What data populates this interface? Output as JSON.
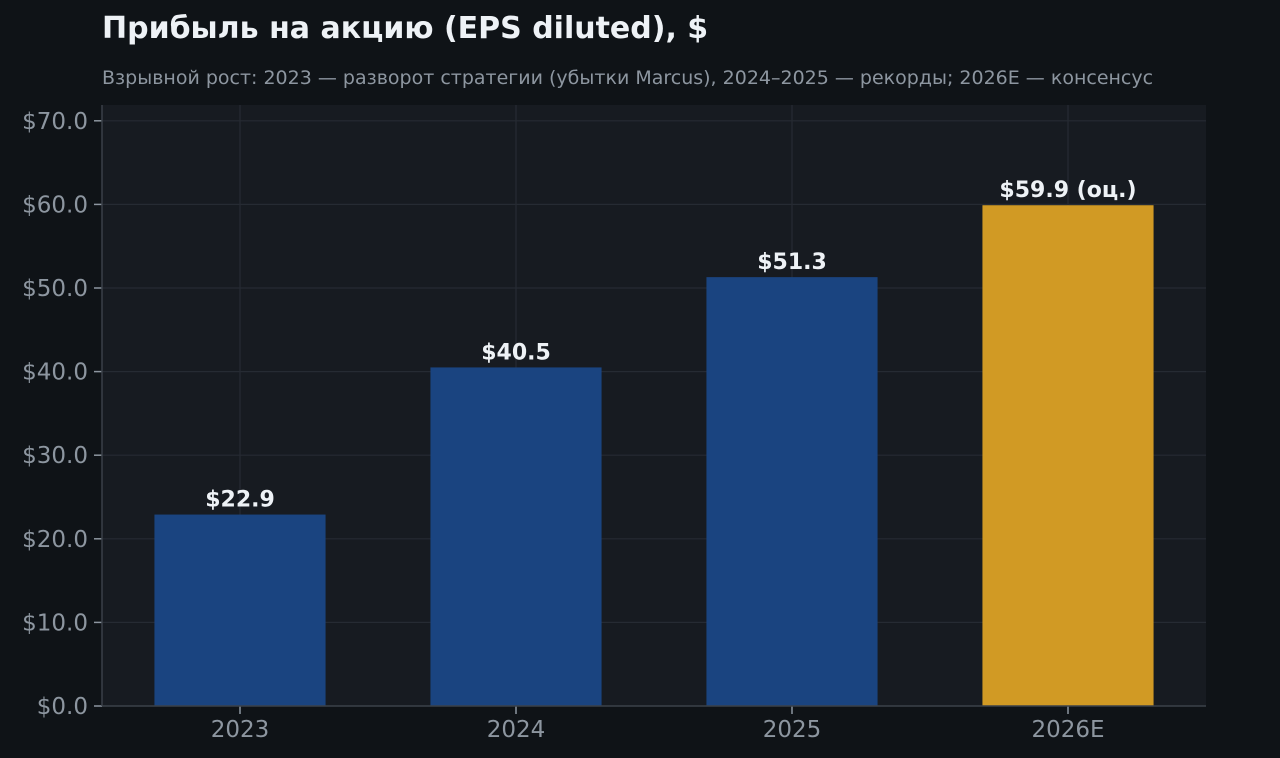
{
  "chart_data": {
    "type": "bar",
    "title": "Прибыль на акцию (EPS diluted), $",
    "subtitle": "Взрывной рост: 2023 — разворот стратегии (убытки Marcus), 2024–2025 — рекорды; 2026E — консенсус",
    "xlabel": "",
    "ylabel": "",
    "categories": [
      "2023",
      "2024",
      "2025",
      "2026E"
    ],
    "values": [
      22.9,
      40.5,
      51.3,
      59.9
    ],
    "data_labels": [
      "$22.9",
      "$40.5",
      "$51.3",
      "$59.9 (оц.)"
    ],
    "bar_colors": [
      "#1a4480",
      "#1a4480",
      "#1a4480",
      "#d19a24"
    ],
    "ylim": [
      0,
      72
    ],
    "y_ticks": [
      0,
      10,
      20,
      30,
      40,
      50,
      60,
      70
    ],
    "y_tick_labels": [
      "$0.0",
      "$10.0",
      "$20.0",
      "$30.0",
      "$40.0",
      "$50.0",
      "$60.0",
      "$70.0"
    ],
    "grid": true,
    "legend": "none",
    "colors": {
      "background": "#0f1317",
      "plot_background": "#171b21",
      "grid": "#262b33",
      "axis": "#3a4048",
      "text": "#eef2f6",
      "muted_text": "#8d96a0"
    }
  }
}
